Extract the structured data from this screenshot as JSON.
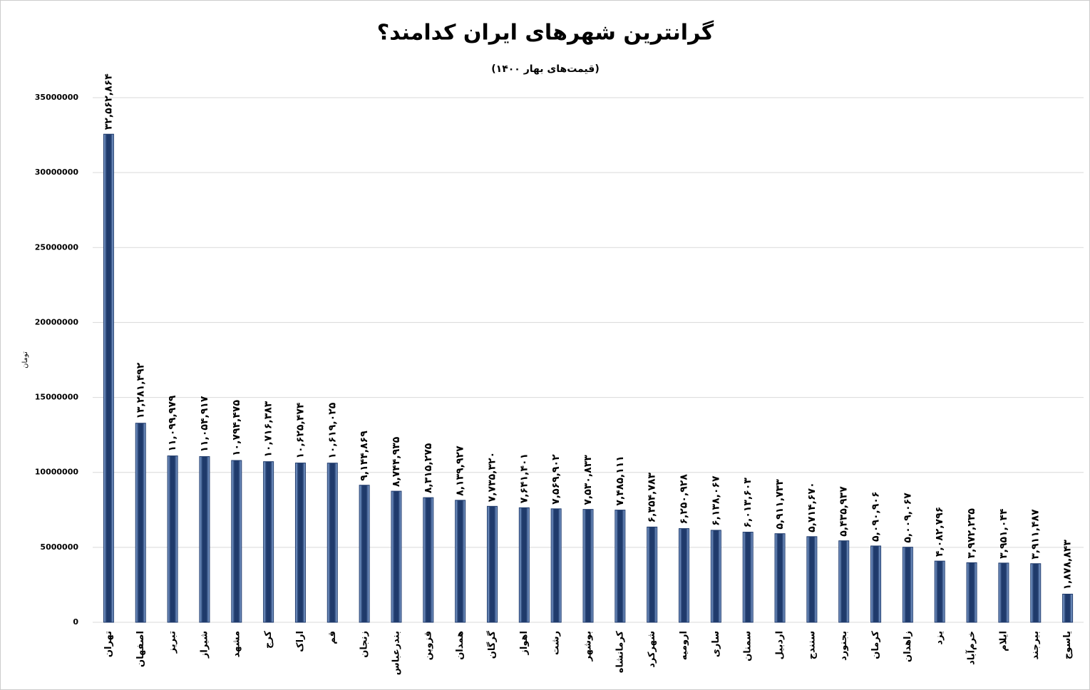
{
  "chart_data": {
    "type": "bar",
    "title": "گرانترین شهرهای ایران کدامند؟",
    "subtitle": "(قیمت‌های بهار ۱۴۰۰)",
    "y_label": "تومان",
    "categories": [
      "تهران",
      "اصفهان",
      "تبریز",
      "شیراز",
      "مشهد",
      "کرج",
      "اراک",
      "قم",
      "زنجان",
      "بندرعباس",
      "قزوین",
      "همدان",
      "گرگان",
      "اهواز",
      "رشت",
      "بوشهر",
      "کرمانشاه",
      "شهرکرد",
      "ارومیه",
      "ساری",
      "سمنان",
      "اردبیل",
      "سنندج",
      "بجنورد",
      "کرمان",
      "زاهدان",
      "یزد",
      "خرم‌آباد",
      "ایلام",
      "بیرجند",
      "یاسوج"
    ],
    "values": [
      32562864,
      13281492,
      11099979,
      11054917,
      10794475,
      10716383,
      10625474,
      10619025,
      9144869,
      8744935,
      8315275,
      8139927,
      7735320,
      7641401,
      7569902,
      7530833,
      7485111,
      6354783,
      6250928,
      6138067,
      6013603,
      5911733,
      5714670,
      5435937,
      5090906,
      5009067,
      4082796,
      3972235,
      3951044,
      3911487,
      1878843
    ],
    "value_labels": [
      "۳۲,۵۶۲,۸۶۴",
      "۱۳,۲۸۱,۴۹۲",
      "۱۱,۰۹۹,۹۷۹",
      "۱۱,۰۵۴,۹۱۷",
      "۱۰,۷۹۴,۴۷۵",
      "۱۰,۷۱۶,۳۸۳",
      "۱۰,۶۲۵,۴۷۴",
      "۱۰,۶۱۹,۰۲۵",
      "۹,۱۴۴,۸۶۹",
      "۸,۷۴۴,۹۳۵",
      "۸,۳۱۵,۲۷۵",
      "۸,۱۳۹,۹۲۷",
      "۷,۷۳۵,۳۲۰",
      "۷,۶۴۱,۴۰۱",
      "۷,۵۶۹,۹۰۲",
      "۷,۵۳۰,۸۳۳",
      "۷,۴۸۵,۱۱۱",
      "۶,۳۵۴,۷۸۳",
      "۶,۲۵۰,۹۲۸",
      "۶,۱۳۸,۰۶۷",
      "۶,۰۱۳,۶۰۳",
      "۵,۹۱۱,۷۳۳",
      "۵,۷۱۴,۶۷۰",
      "۵,۴۳۵,۹۳۷",
      "۵,۰۹۰,۹۰۶",
      "۵,۰۰۹,۰۶۷",
      "۴,۰۸۲,۷۹۶",
      "۳,۹۷۲,۲۳۵",
      "۳,۹۵۱,۰۴۴",
      "۳,۹۱۱,۴۸۷",
      "۱,۸۷۸,۸۴۳"
    ],
    "color": "#1f3a6b",
    "ylim": [
      0,
      35000000
    ],
    "yticks": [
      0,
      5000000,
      10000000,
      15000000,
      20000000,
      25000000,
      30000000,
      35000000
    ],
    "grid": true
  }
}
